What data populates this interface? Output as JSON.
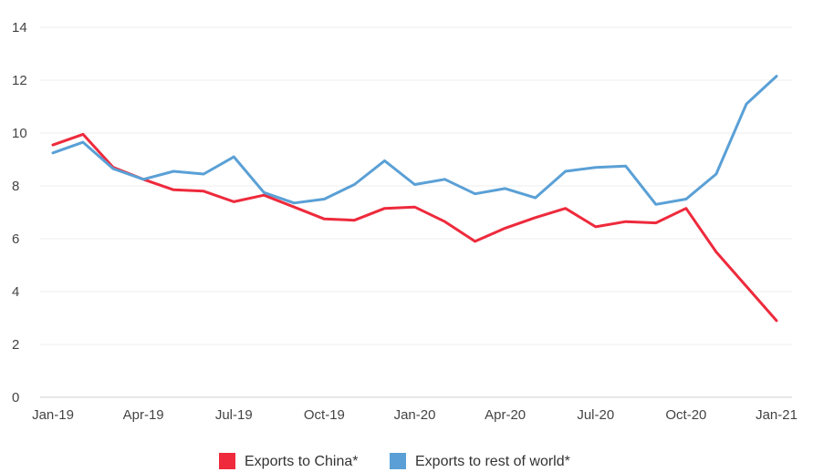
{
  "chart_data": {
    "type": "line",
    "title": "",
    "xlabel": "",
    "ylabel": "",
    "ylim": [
      0,
      14
    ],
    "y_ticks": [
      "0",
      "2",
      "4",
      "6",
      "8",
      "10",
      "12",
      "14"
    ],
    "x": [
      "Jan-19",
      "Feb-19",
      "Mar-19",
      "Apr-19",
      "May-19",
      "Jun-19",
      "Jul-19",
      "Aug-19",
      "Sep-19",
      "Oct-19",
      "Nov-19",
      "Dec-19",
      "Jan-20",
      "Feb-20",
      "Mar-20",
      "Apr-20",
      "May-20",
      "Jun-20",
      "Jul-20",
      "Aug-20",
      "Sep-20",
      "Oct-20",
      "Nov-20",
      "Dec-20",
      "Jan-21"
    ],
    "x_tick_labels": [
      "Jan-19",
      "Apr-19",
      "Jul-19",
      "Oct-19",
      "Jan-20",
      "Apr-20",
      "Jul-20",
      "Oct-20",
      "Jan-21"
    ],
    "grid": true,
    "legend_position": "bottom",
    "series": [
      {
        "name": "Exports to China*",
        "color": "#ee2a3c",
        "values": [
          9.55,
          9.95,
          8.7,
          8.25,
          7.85,
          7.8,
          7.4,
          7.65,
          7.2,
          6.75,
          6.7,
          7.15,
          7.2,
          6.65,
          5.9,
          6.4,
          6.8,
          7.15,
          6.45,
          6.65,
          6.6,
          7.15,
          5.5,
          4.2,
          2.9
        ]
      },
      {
        "name": "Exports to rest of world*",
        "color": "#5aa0d6",
        "values": [
          9.25,
          9.65,
          8.65,
          8.25,
          8.55,
          8.45,
          9.1,
          7.75,
          7.35,
          7.5,
          8.05,
          8.95,
          8.05,
          8.25,
          7.7,
          7.9,
          7.55,
          8.55,
          8.7,
          8.75,
          7.3,
          7.5,
          8.45,
          11.1,
          12.15
        ]
      }
    ]
  }
}
